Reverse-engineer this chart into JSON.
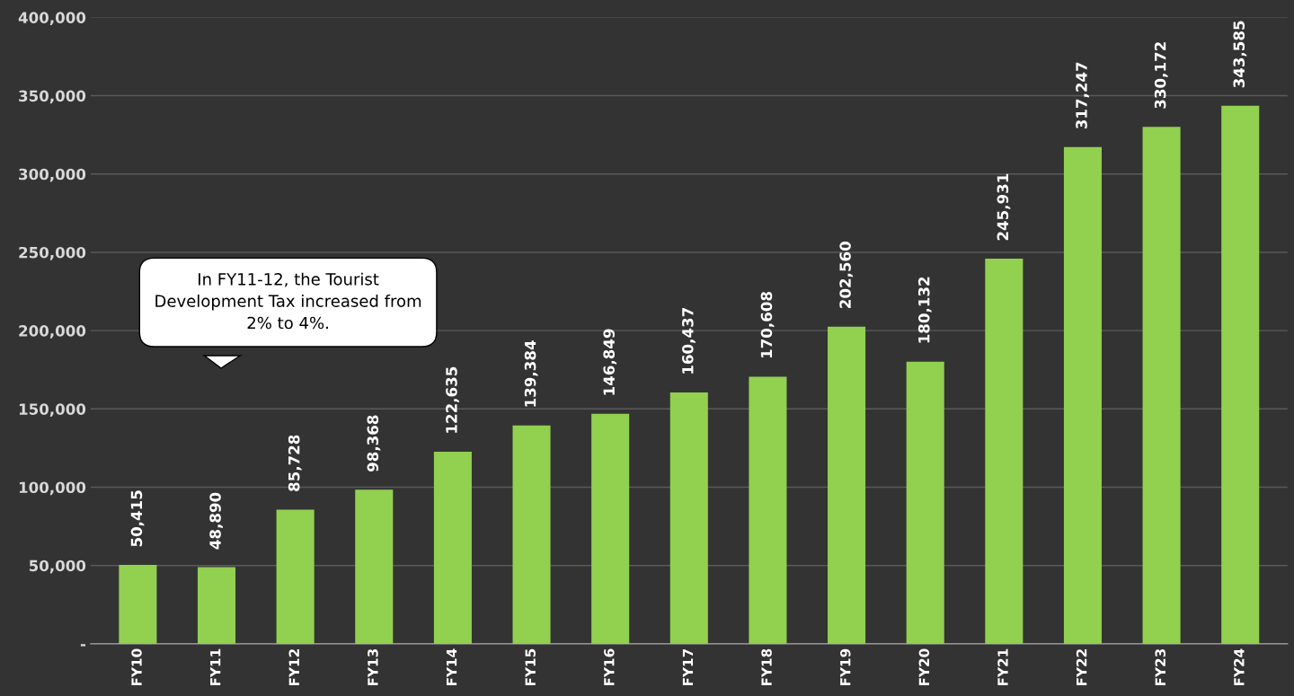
{
  "chart_data": {
    "type": "bar",
    "categories": [
      "FY10",
      "FY11",
      "FY12",
      "FY13",
      "FY14",
      "FY15",
      "FY16",
      "FY17",
      "FY18",
      "FY19",
      "FY20",
      "FY21",
      "FY22",
      "FY23",
      "FY24"
    ],
    "values": [
      50415,
      48890,
      85728,
      98368,
      122635,
      139384,
      146849,
      160437,
      170608,
      202560,
      180132,
      245931,
      317247,
      330172,
      343585
    ],
    "value_labels": [
      "50,415",
      "48,890",
      "85,728",
      "98,368",
      "122,635",
      "139,384",
      "146,849",
      "160,437",
      "170,608",
      "202,560",
      "180,132",
      "245,931",
      "317,247",
      "330,172",
      "343,585"
    ],
    "color": "#92d050",
    "ylim": [
      0,
      400000
    ],
    "yticks": [
      {
        "value": 0,
        "label": "-"
      },
      {
        "value": 50000,
        "label": "50,000"
      },
      {
        "value": 100000,
        "label": "100,000"
      },
      {
        "value": 150000,
        "label": "150,000"
      },
      {
        "value": 200000,
        "label": "200,000"
      },
      {
        "value": 250000,
        "label": "250,000"
      },
      {
        "value": 300000,
        "label": "300,000"
      },
      {
        "value": 350000,
        "label": "350,000"
      },
      {
        "value": 400000,
        "label": "400,000"
      }
    ],
    "grid": "y",
    "annotations": [
      "In FY11-12, the Tourist\nDevelopment Tax increased from\n2% to 4%."
    ]
  }
}
